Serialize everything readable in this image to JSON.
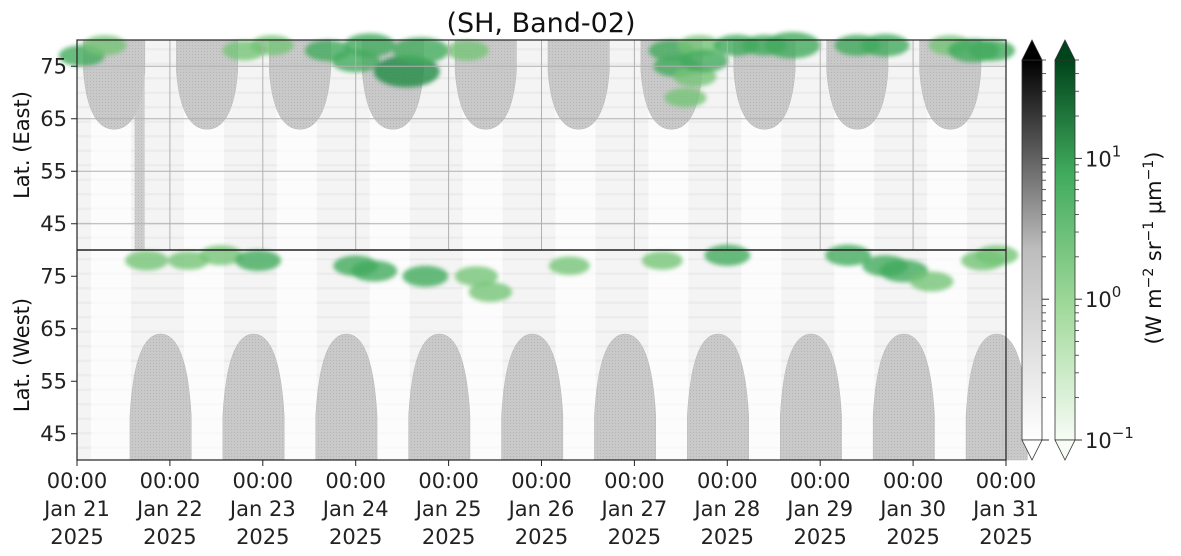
{
  "chart_data": {
    "type": "heatmap",
    "title": "(SH, Band-02)",
    "y_panels": [
      {
        "ylabel": "Lat. (East)",
        "ticks": [
          45,
          55,
          65,
          75
        ],
        "ylim": [
          40,
          80
        ],
        "inverted": false
      },
      {
        "ylabel": "Lat. (West)",
        "ticks": [
          75,
          65,
          55,
          45
        ],
        "ylim": [
          80,
          40
        ],
        "inverted": true
      }
    ],
    "x_ticks": [
      {
        "time": "00:00",
        "date": "Jan 21",
        "year": "2025"
      },
      {
        "time": "00:00",
        "date": "Jan 22",
        "year": "2025"
      },
      {
        "time": "00:00",
        "date": "Jan 23",
        "year": "2025"
      },
      {
        "time": "00:00",
        "date": "Jan 24",
        "year": "2025"
      },
      {
        "time": "00:00",
        "date": "Jan 25",
        "year": "2025"
      },
      {
        "time": "00:00",
        "date": "Jan 26",
        "year": "2025"
      },
      {
        "time": "00:00",
        "date": "Jan 27",
        "year": "2025"
      },
      {
        "time": "00:00",
        "date": "Jan 28",
        "year": "2025"
      },
      {
        "time": "00:00",
        "date": "Jan 29",
        "year": "2025"
      },
      {
        "time": "00:00",
        "date": "Jan 30",
        "year": "2025"
      },
      {
        "time": "00:00",
        "date": "Jan 31",
        "year": "2025"
      }
    ],
    "xlim": [
      "2025-01-21 00:00",
      "2025-01-31 00:00"
    ],
    "grid": true,
    "colorbars": [
      {
        "name": "gray-colorbar",
        "colormap": "gray",
        "extend": "both",
        "color_low": "#ffffff",
        "color_high": "#000000"
      },
      {
        "name": "green-colorbar",
        "colormap": "green",
        "extend": "both",
        "color_low": "#f7fcf5",
        "color_high": "#00441b"
      }
    ],
    "colorbar_scale": "log",
    "colorbar_range": [
      0.1,
      50
    ],
    "colorbar_ticks": [
      {
        "value": 0.1,
        "base": "10",
        "exp": "−1"
      },
      {
        "value": 1,
        "base": "10",
        "exp": "0"
      },
      {
        "value": 10,
        "base": "10",
        "exp": "1"
      }
    ],
    "colorbar_label": {
      "p1": "(W m",
      "e1": "−2",
      "p2": " sr",
      "e2": "−1",
      "p3": " μm",
      "e3": "−1",
      "p4": ")"
    },
    "night_mask": {
      "color": "#c4c4c4",
      "east_lobe_centers_days": [
        0.4,
        1.4,
        2.4,
        3.4,
        4.4,
        5.4,
        6.4,
        7.4,
        8.4,
        9.4
      ],
      "west_lobe_centers_days": [
        0.9,
        1.9,
        2.9,
        3.9,
        4.9,
        5.9,
        6.9,
        7.9,
        8.9,
        9.9
      ],
      "lobe_half_width_days": 0.33,
      "east_lobe_edge_lat": 63,
      "west_lobe_edge_lat": 64
    },
    "aurora_patches": [
      {
        "panel": "east",
        "day": 0.05,
        "lat": 77,
        "value": 2.0
      },
      {
        "panel": "east",
        "day": 0.3,
        "lat": 79,
        "value": 1.5
      },
      {
        "panel": "east",
        "day": 1.8,
        "lat": 78,
        "value": 1.5
      },
      {
        "panel": "east",
        "day": 2.1,
        "lat": 79,
        "value": 1.5
      },
      {
        "panel": "east",
        "day": 2.7,
        "lat": 78,
        "value": 2.0
      },
      {
        "panel": "east",
        "day": 3.0,
        "lat": 76,
        "value": 2.5
      },
      {
        "panel": "east",
        "day": 3.15,
        "lat": 79,
        "value": 3.0
      },
      {
        "panel": "east",
        "day": 3.55,
        "lat": 74,
        "value": 6.0
      },
      {
        "panel": "east",
        "day": 3.7,
        "lat": 78,
        "value": 4.0
      },
      {
        "panel": "east",
        "day": 4.2,
        "lat": 78,
        "value": 1.5
      },
      {
        "panel": "east",
        "day": 6.4,
        "lat": 78,
        "value": 2.0
      },
      {
        "panel": "east",
        "day": 6.7,
        "lat": 79,
        "value": 1.5
      },
      {
        "panel": "east",
        "day": 6.45,
        "lat": 75,
        "value": 2.0
      },
      {
        "panel": "east",
        "day": 6.55,
        "lat": 69,
        "value": 1.2
      },
      {
        "panel": "east",
        "day": 6.65,
        "lat": 73,
        "value": 1.5
      },
      {
        "panel": "east",
        "day": 6.75,
        "lat": 76,
        "value": 2.5
      },
      {
        "panel": "east",
        "day": 7.1,
        "lat": 79,
        "value": 2.0
      },
      {
        "panel": "east",
        "day": 7.4,
        "lat": 79,
        "value": 1.8
      },
      {
        "panel": "east",
        "day": 7.7,
        "lat": 79,
        "value": 4.0
      },
      {
        "panel": "east",
        "day": 8.4,
        "lat": 79,
        "value": 2.0
      },
      {
        "panel": "east",
        "day": 8.7,
        "lat": 79,
        "value": 2.5
      },
      {
        "panel": "east",
        "day": 9.4,
        "lat": 79,
        "value": 1.5
      },
      {
        "panel": "east",
        "day": 9.65,
        "lat": 78,
        "value": 3.0
      },
      {
        "panel": "east",
        "day": 9.85,
        "lat": 78,
        "value": 2.0
      },
      {
        "panel": "west",
        "day": 0.75,
        "lat": 78,
        "value": 1.5
      },
      {
        "panel": "west",
        "day": 1.2,
        "lat": 78,
        "value": 1.0
      },
      {
        "panel": "west",
        "day": 1.55,
        "lat": 79,
        "value": 1.5
      },
      {
        "panel": "west",
        "day": 1.95,
        "lat": 78,
        "value": 2.0
      },
      {
        "panel": "west",
        "day": 3.0,
        "lat": 77,
        "value": 1.8
      },
      {
        "panel": "west",
        "day": 3.2,
        "lat": 76,
        "value": 2.0
      },
      {
        "panel": "west",
        "day": 3.75,
        "lat": 75,
        "value": 2.0
      },
      {
        "panel": "west",
        "day": 4.3,
        "lat": 75,
        "value": 1.5
      },
      {
        "panel": "west",
        "day": 4.45,
        "lat": 72,
        "value": 1.5
      },
      {
        "panel": "west",
        "day": 5.3,
        "lat": 77,
        "value": 1.0
      },
      {
        "panel": "west",
        "day": 6.3,
        "lat": 78,
        "value": 1.0
      },
      {
        "panel": "west",
        "day": 7.0,
        "lat": 79,
        "value": 2.0
      },
      {
        "panel": "west",
        "day": 8.3,
        "lat": 79,
        "value": 2.0
      },
      {
        "panel": "west",
        "day": 8.7,
        "lat": 77,
        "value": 2.0
      },
      {
        "panel": "west",
        "day": 8.9,
        "lat": 76,
        "value": 2.5
      },
      {
        "panel": "west",
        "day": 9.2,
        "lat": 74,
        "value": 1.5
      },
      {
        "panel": "west",
        "day": 9.75,
        "lat": 78,
        "value": 1.5
      },
      {
        "panel": "west",
        "day": 9.9,
        "lat": 79,
        "value": 1.5
      }
    ]
  }
}
